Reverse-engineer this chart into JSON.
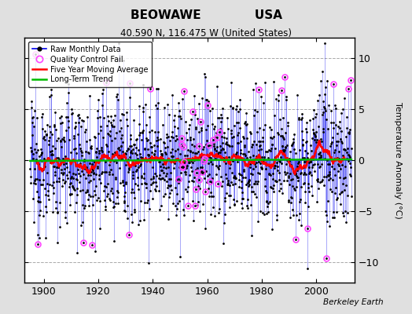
{
  "title_line1": "BEOWAWE             USA",
  "title_line2": "40.590 N, 116.475 W (United States)",
  "ylabel": "Temperature Anomaly (°C)",
  "xlabel_credit": "Berkeley Earth",
  "ylim": [
    -12,
    12
  ],
  "xlim": [
    1893,
    2014
  ],
  "yticks": [
    -10,
    -5,
    0,
    5,
    10
  ],
  "xticks": [
    1900,
    1920,
    1940,
    1960,
    1980,
    2000
  ],
  "raw_color": "#0000ee",
  "qc_color": "#ff44ff",
  "moving_avg_color": "#ff0000",
  "trend_color": "#00bb00",
  "background_color": "#e0e0e0",
  "plot_bg_color": "#ffffff",
  "seed": 12345,
  "n_years": 118,
  "start_year": 1895
}
